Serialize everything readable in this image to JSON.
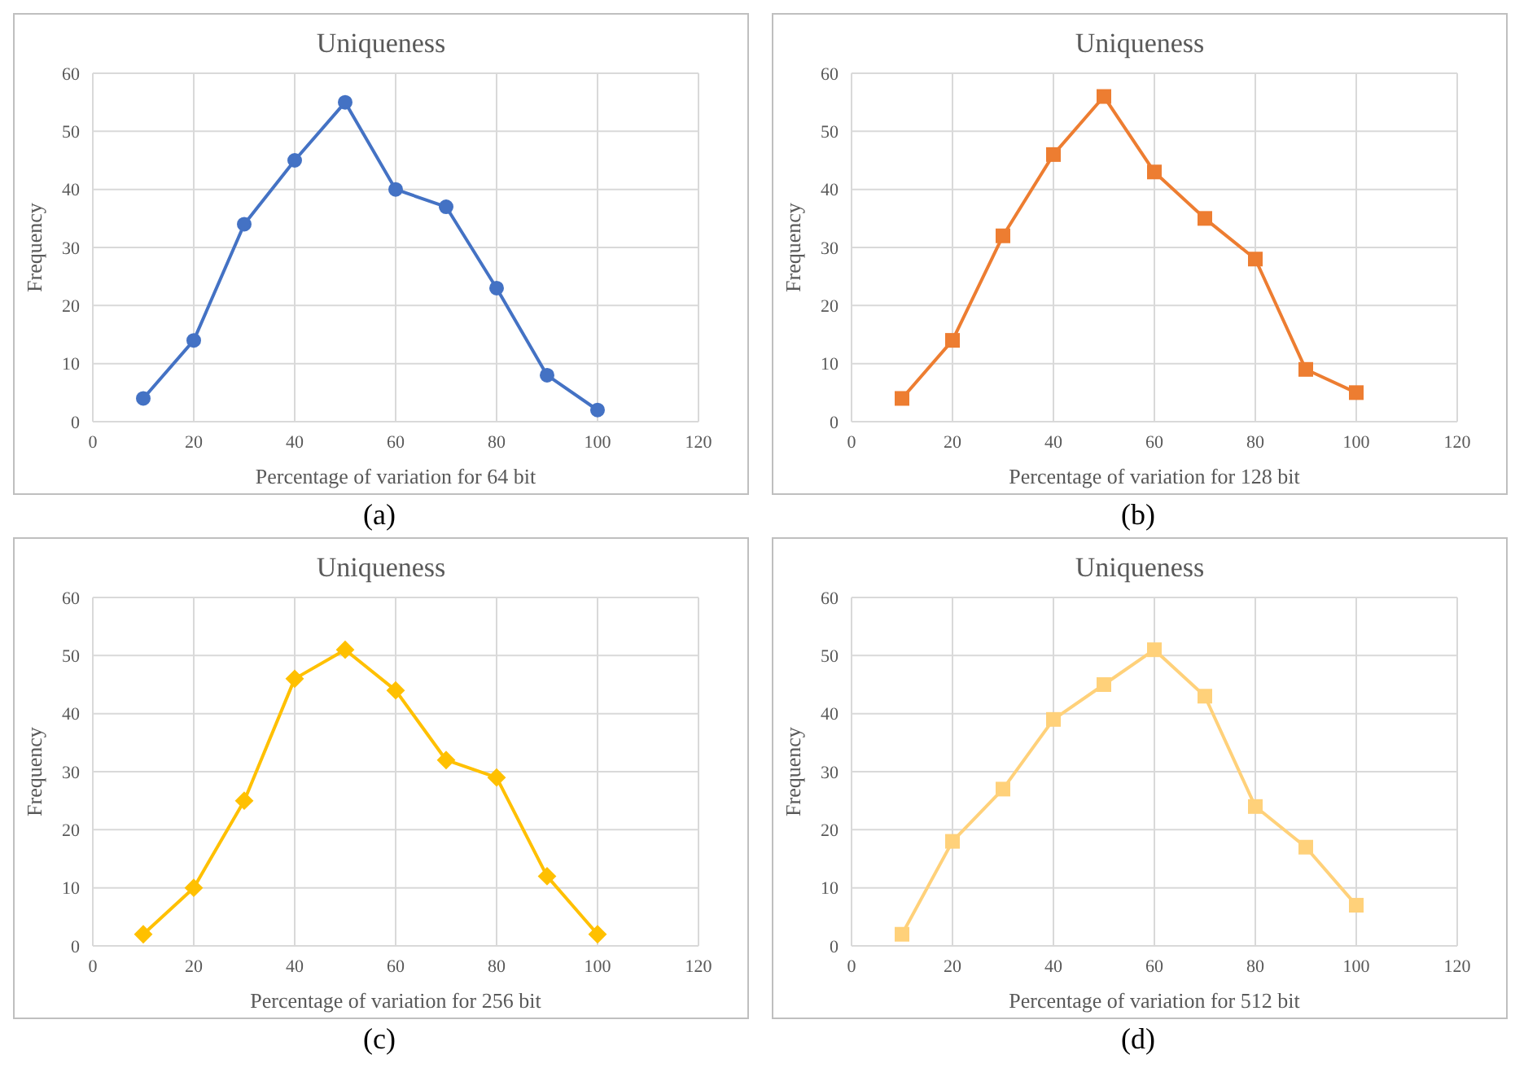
{
  "chart_data": [
    {
      "type": "line",
      "title": "Uniqueness",
      "xlabel": "Percentage of variation for 64 bit",
      "ylabel": "Frequency",
      "x": [
        10,
        20,
        30,
        40,
        50,
        60,
        70,
        80,
        90,
        100
      ],
      "series": [
        {
          "color": "#4472c4",
          "values": [
            4,
            14,
            34,
            45,
            55,
            40,
            37,
            23,
            8,
            2
          ]
        }
      ],
      "xlim": [
        0,
        120
      ],
      "xticks": [
        0,
        20,
        40,
        60,
        80,
        100,
        120
      ],
      "ylim": [
        0,
        60
      ],
      "yticks": [
        0,
        10,
        20,
        30,
        40,
        50,
        60
      ],
      "grid": true,
      "marker": "circle",
      "annotations": [
        "(a)"
      ]
    },
    {
      "type": "line",
      "title": "Uniqueness",
      "xlabel": "Percentage of variation for 128 bit",
      "ylabel": "Frequency",
      "x": [
        10,
        20,
        30,
        40,
        50,
        60,
        70,
        80,
        90,
        100
      ],
      "series": [
        {
          "color": "#ed7d31",
          "values": [
            4,
            14,
            32,
            46,
            56,
            43,
            35,
            28,
            9,
            5
          ]
        }
      ],
      "xlim": [
        0,
        120
      ],
      "xticks": [
        0,
        20,
        40,
        60,
        80,
        100,
        120
      ],
      "ylim": [
        0,
        60
      ],
      "yticks": [
        0,
        10,
        20,
        30,
        40,
        50,
        60
      ],
      "grid": true,
      "marker": "square",
      "annotations": [
        "(b)"
      ]
    },
    {
      "type": "line",
      "title": "Uniqueness",
      "xlabel": "Percentage of variation for 256 bit",
      "ylabel": "Frequency",
      "x": [
        10,
        20,
        30,
        40,
        50,
        60,
        70,
        80,
        90,
        100
      ],
      "series": [
        {
          "color": "#ffc000",
          "values": [
            2,
            10,
            25,
            46,
            51,
            44,
            32,
            29,
            12,
            2
          ]
        }
      ],
      "xlim": [
        0,
        120
      ],
      "xticks": [
        0,
        20,
        40,
        60,
        80,
        100,
        120
      ],
      "ylim": [
        0,
        60
      ],
      "yticks": [
        0,
        10,
        20,
        30,
        40,
        50,
        60
      ],
      "grid": true,
      "marker": "diamond",
      "annotations": [
        "(c)"
      ]
    },
    {
      "type": "line",
      "title": "Uniqueness",
      "xlabel": "Percentage of variation for 512 bit",
      "ylabel": "Frequency",
      "x": [
        10,
        20,
        30,
        40,
        50,
        60,
        70,
        80,
        90,
        100
      ],
      "series": [
        {
          "color": "#ffd17a",
          "values": [
            2,
            18,
            27,
            39,
            45,
            51,
            43,
            24,
            17,
            7
          ]
        }
      ],
      "xlim": [
        0,
        120
      ],
      "xticks": [
        0,
        20,
        40,
        60,
        80,
        100,
        120
      ],
      "ylim": [
        0,
        60
      ],
      "yticks": [
        0,
        10,
        20,
        30,
        40,
        50,
        60
      ],
      "grid": true,
      "marker": "square",
      "annotations": [
        "(d)"
      ]
    }
  ]
}
